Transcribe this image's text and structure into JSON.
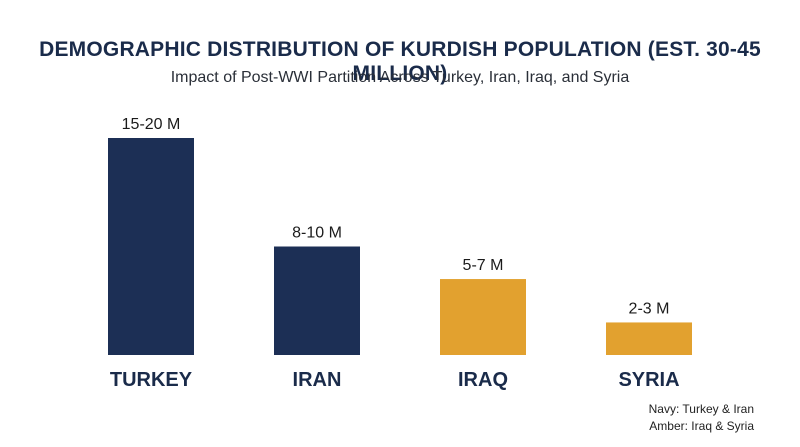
{
  "chart_data": {
    "type": "bar",
    "title": "DEMOGRAPHIC DISTRIBUTION OF KURDISH POPULATION (EST. 30-45 MILLION)",
    "subtitle": "Impact of Post-WWI Partition Across Turkey, Iran, Iraq, and Syria",
    "xlabel": "",
    "ylabel": "",
    "categories": [
      "TURKEY",
      "IRAN",
      "IRAQ",
      "SYRIA"
    ],
    "values": [
      20,
      10,
      7,
      3
    ],
    "data_labels": [
      "15-20 M",
      "8-10 M",
      "5-7 M",
      "2-3 M"
    ],
    "bar_colors": [
      "#1c2f55",
      "#1c2f55",
      "#e2a12f",
      "#e2a12f"
    ],
    "ylim": [
      0,
      20
    ],
    "grid": false
  },
  "legend": {
    "lines": [
      "Navy: Turkey & Iran",
      "Amber: Iraq & Syria"
    ]
  }
}
